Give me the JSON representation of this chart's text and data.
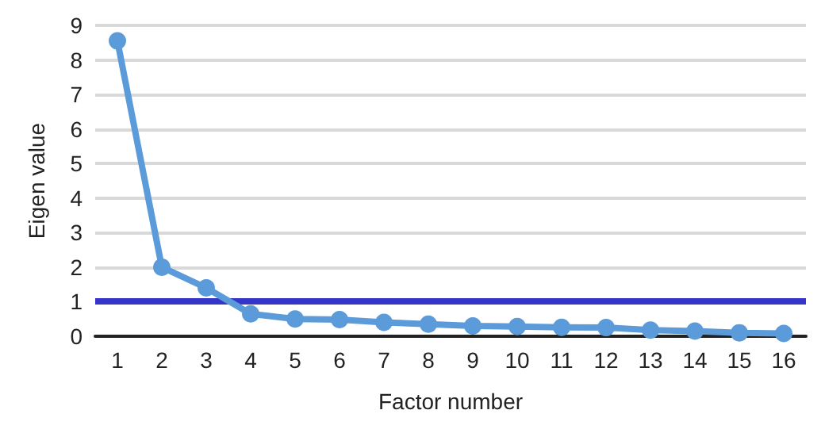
{
  "chart_data": {
    "type": "line",
    "xlabel": "Factor number",
    "ylabel": "Eigen value",
    "categories": [
      "1",
      "2",
      "3",
      "4",
      "5",
      "6",
      "7",
      "8",
      "9",
      "10",
      "11",
      "12",
      "13",
      "14",
      "15",
      "16"
    ],
    "series": [
      {
        "color": "#5b9bd9",
        "values": [
          8.55,
          2.0,
          1.4,
          0.65,
          0.5,
          0.48,
          0.4,
          0.35,
          0.3,
          0.28,
          0.26,
          0.25,
          0.18,
          0.15,
          0.1,
          0.08
        ]
      }
    ],
    "ylim": [
      0,
      9
    ],
    "yticks": [
      0,
      1,
      2,
      3,
      4,
      5,
      6,
      7,
      8,
      9
    ],
    "grid": "y",
    "marker": "circle",
    "line_style": "solid",
    "ref_lines": [
      {
        "axis": "y",
        "value": 1,
        "color": "#3535c8",
        "line_style": "solid"
      }
    ]
  }
}
